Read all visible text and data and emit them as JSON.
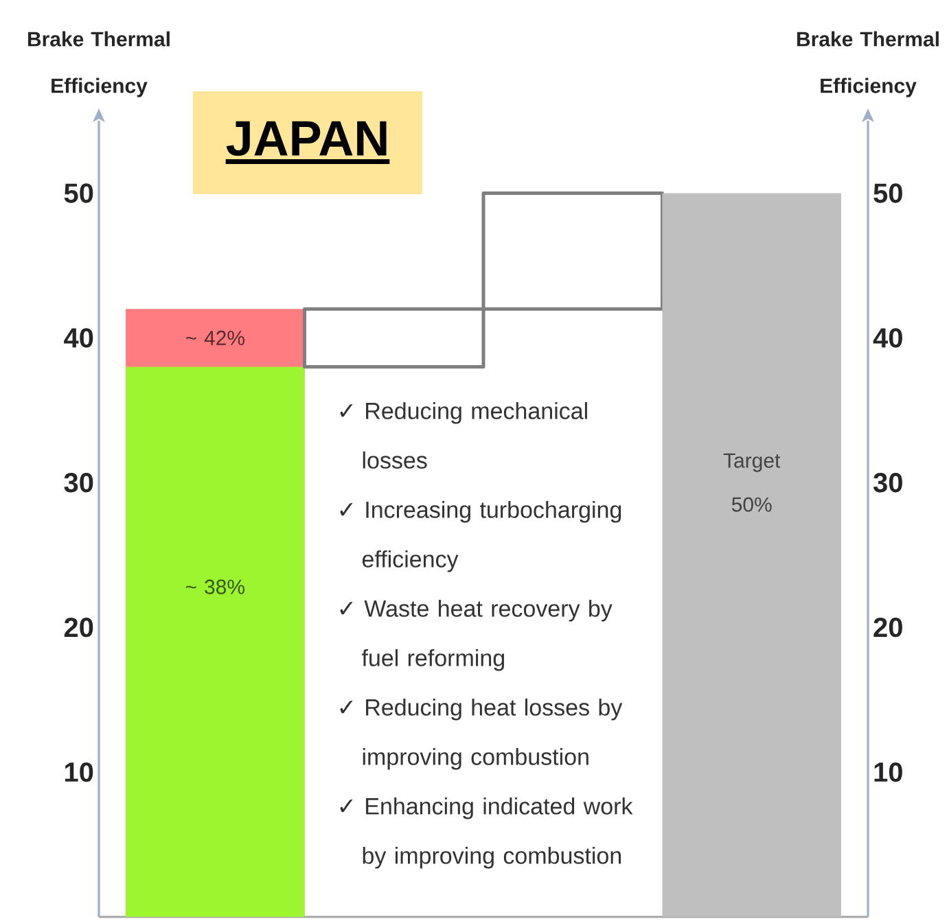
{
  "chart_data": {
    "type": "bar",
    "title": "JAPAN",
    "ylabel": "Brake Thermal Efficiency",
    "y2label": "Brake Thermal Efficiency",
    "categories": [
      null,
      null,
      null,
      null
    ],
    "series": [
      {
        "color": "#ff7c80",
        "values": [
          42,
          null,
          null,
          null
        ],
        "value_labels": [
          "~ 42%",
          null,
          null,
          null
        ]
      },
      {
        "color": "#9cf52e",
        "values": [
          38,
          null,
          null,
          null
        ],
        "value_labels": [
          "~ 38%",
          null,
          null,
          null
        ]
      },
      {
        "color": "#ffffff",
        "base": [
          null,
          38,
          42,
          null
        ],
        "values": [
          null,
          4,
          8,
          null
        ]
      },
      {
        "color": "#bfbfbf",
        "values": [
          null,
          null,
          null,
          50
        ],
        "value_labels": [
          null,
          null,
          null,
          "Target 50%"
        ]
      }
    ],
    "ylim": [
      0,
      55
    ],
    "yticks": [
      10,
      20,
      30,
      40,
      50
    ],
    "y2lim": [
      0,
      55
    ],
    "y2ticks": [
      10,
      20,
      30,
      40,
      50
    ],
    "annotations": [
      "✓ Reducing mechanical losses",
      "✓ Increasing turbocharging efficiency",
      "✓ Waste heat recovery by fuel reforming",
      "✓ Reducing heat losses by improving combustion",
      "✓ Enhancing indicated work by improving combustion"
    ]
  }
}
